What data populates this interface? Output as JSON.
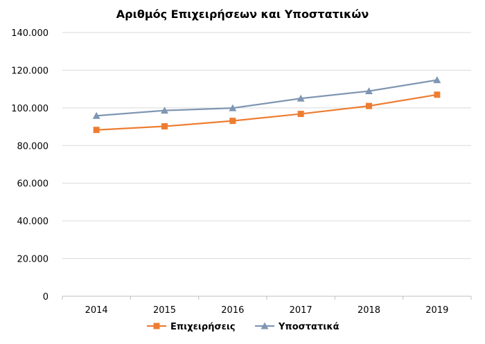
{
  "chart_data": {
    "type": "line",
    "title": "Αριθμός Επιχειρήσεων και Υποστατικών",
    "xlabel": "",
    "ylabel": "",
    "categories": [
      "2014",
      "2015",
      "2016",
      "2017",
      "2018",
      "2019"
    ],
    "ylim": [
      0,
      140000
    ],
    "y_ticks": [
      0,
      20000,
      40000,
      60000,
      80000,
      100000,
      120000,
      140000
    ],
    "y_tick_labels": [
      "0",
      "20.000",
      "40.000",
      "60.000",
      "80.000",
      "100.000",
      "120.000",
      "140.000"
    ],
    "grid": true,
    "legend_position": "bottom",
    "series": [
      {
        "name": "Επιχειρήσεις",
        "values": [
          88300,
          90200,
          93100,
          96800,
          101000,
          107000
        ],
        "color": "#ED7D31",
        "marker": "square"
      },
      {
        "name": "Υποστατικά",
        "values": [
          95800,
          98600,
          99900,
          105000,
          108900,
          114800
        ],
        "color": "#7F96B2",
        "marker": "triangle"
      }
    ]
  }
}
